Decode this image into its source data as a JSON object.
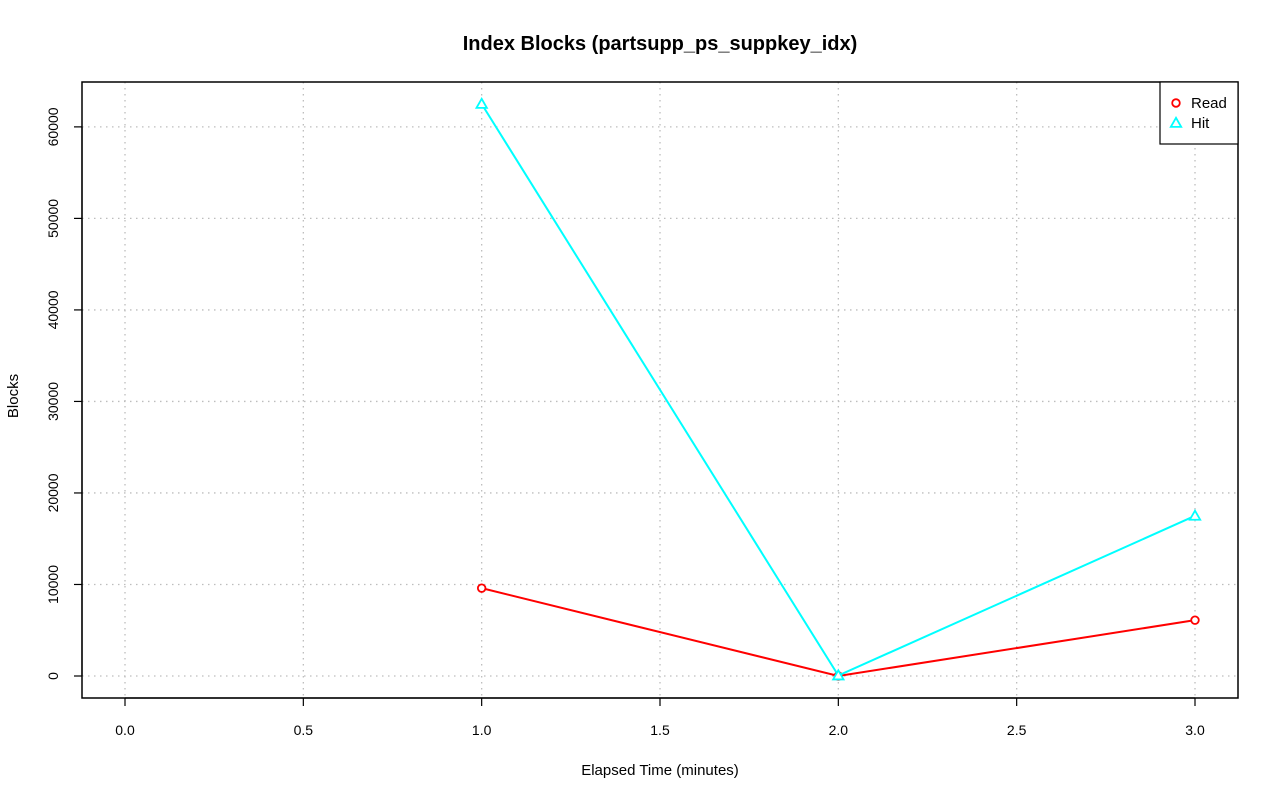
{
  "chart_data": {
    "type": "line",
    "title": "Index Blocks (partsupp_ps_suppkey_idx)",
    "xlabel": "Elapsed Time (minutes)",
    "ylabel": "Blocks",
    "xlim": [
      0.0,
      3.0
    ],
    "ylim": [
      0,
      62500
    ],
    "x_ticks": [
      "0.0",
      "0.5",
      "1.0",
      "1.5",
      "2.0",
      "2.5",
      "3.0"
    ],
    "y_ticks": [
      "0",
      "10000",
      "20000",
      "30000",
      "40000",
      "50000",
      "60000"
    ],
    "grid": true,
    "legend_position": "top-right",
    "x": [
      1.0,
      2.0,
      3.0
    ],
    "series": [
      {
        "name": "Read",
        "marker": "circle",
        "color": "#ff0000",
        "values": [
          9600,
          0,
          6100
        ]
      },
      {
        "name": "Hit",
        "marker": "triangle",
        "color": "#00ffff",
        "values": [
          62500,
          50,
          17500
        ]
      }
    ]
  }
}
